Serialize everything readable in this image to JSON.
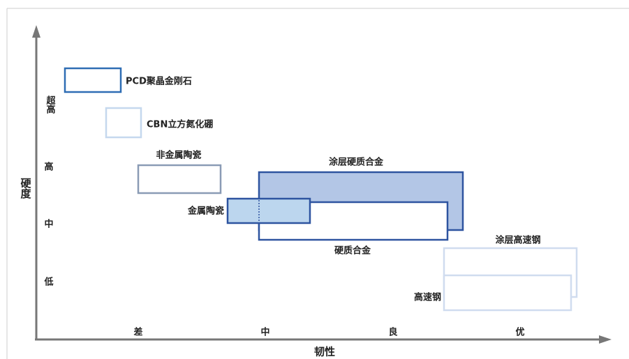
{
  "axes": {
    "y_label": "硬度",
    "x_label": "韧性",
    "y_levels": [
      "超高",
      "高",
      "中",
      "低"
    ],
    "x_levels": [
      "差",
      "中",
      "良",
      "优"
    ]
  },
  "nodes": [
    {
      "label": "PCD聚晶金刚石"
    },
    {
      "label": "CBN立方氮化硼"
    },
    {
      "label": "非金属陶瓷"
    },
    {
      "label": "涂层硬质合金"
    },
    {
      "label": "硬质合金"
    },
    {
      "label": "金属陶瓷"
    },
    {
      "label": "涂层高速钢"
    },
    {
      "label": "高速钢"
    }
  ]
}
